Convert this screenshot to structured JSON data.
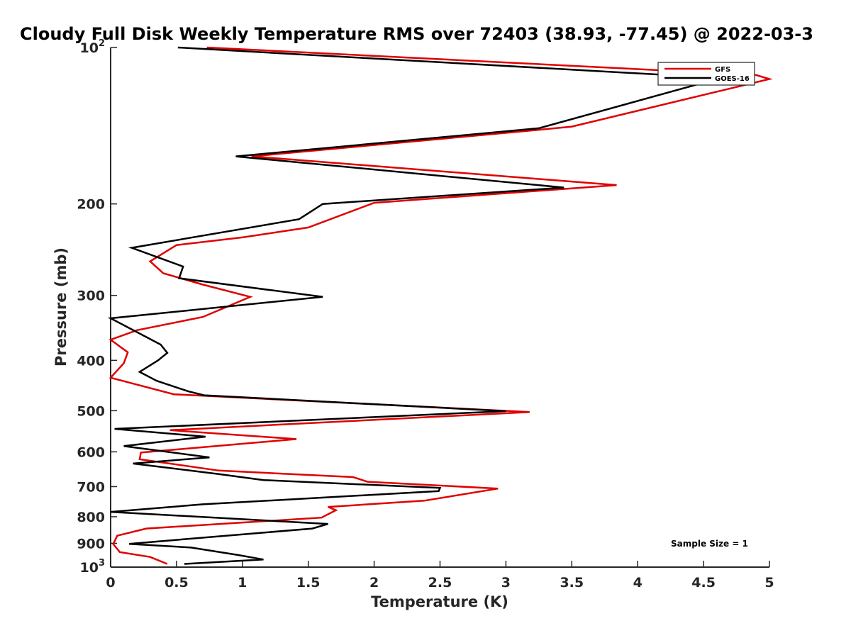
{
  "chart_data": {
    "type": "line",
    "title": "Cloudy Full Disk Weekly Temperature RMS over 72403 (38.93, -77.45) @ 2022-03-3",
    "xlabel": "Temperature (K)",
    "ylabel": "Pressure (mb)",
    "xlim": [
      0,
      5
    ],
    "ylim": [
      100,
      1000
    ],
    "y_scale": "log",
    "y_reversed": true,
    "x_ticks": [
      "0",
      "0.5",
      "1",
      "1.5",
      "2",
      "2.5",
      "3",
      "3.5",
      "4",
      "4.5",
      "5"
    ],
    "y_ticks": [
      {
        "value": 100,
        "base": "10",
        "exp": "2"
      },
      {
        "value": 200,
        "label": "200"
      },
      {
        "value": 300,
        "label": "300"
      },
      {
        "value": 400,
        "label": "400"
      },
      {
        "value": 500,
        "label": "500"
      },
      {
        "value": 600,
        "label": "600"
      },
      {
        "value": 700,
        "label": "700"
      },
      {
        "value": 800,
        "label": "800"
      },
      {
        "value": 900,
        "label": "900"
      },
      {
        "value": 1000,
        "base": "10",
        "exp": "3"
      }
    ],
    "grid": false,
    "legend_position": "top-right",
    "annotation": "Sample Size = 1",
    "series": [
      {
        "name": "GFS",
        "color": "#e00000",
        "x": [
          0.73,
          4.9,
          5.0,
          3.5,
          3.25,
          1.07,
          3.84,
          2.0,
          1.5,
          1.0,
          0.5,
          0.3,
          0.4,
          0.7,
          1.06,
          0.7,
          0.2,
          0.0,
          0.13,
          0.1,
          0.0,
          0.48,
          3.18,
          0.45,
          1.41,
          0.23,
          0.22,
          0.82,
          1.84,
          1.95,
          2.94,
          2.38,
          1.65,
          1.71,
          1.6,
          0.27,
          0.05,
          0.02,
          0.07,
          0.3,
          0.43
        ],
        "y": [
          100,
          113,
          115,
          142,
          144,
          162,
          184,
          199,
          222,
          232,
          240,
          258,
          272,
          286,
          302,
          330,
          350,
          365,
          386,
          405,
          432,
          465,
          503,
          545,
          567,
          602,
          620,
          652,
          671,
          685,
          706,
          745,
          766,
          777,
          803,
          843,
          870,
          903,
          936,
          956,
          986
        ]
      },
      {
        "name": "GOES-16",
        "color": "#000000",
        "x": [
          0.51,
          4.5,
          4.6,
          3.25,
          0.95,
          3.44,
          1.61,
          1.43,
          0.16,
          0.55,
          0.52,
          1.61,
          0.0,
          0.38,
          0.43,
          0.36,
          0.22,
          0.35,
          0.59,
          0.71,
          3.0,
          0.03,
          0.72,
          0.1,
          0.75,
          0.17,
          0.82,
          1.16,
          2.5,
          2.49,
          0.7,
          0.0,
          1.65,
          1.53,
          0.14,
          0.61,
          0.97,
          1.16,
          0.56
        ],
        "y": [
          100,
          114,
          115,
          143,
          162,
          186,
          200,
          214,
          243,
          264,
          278,
          302,
          332,
          373,
          387,
          400,
          421,
          438,
          459,
          467,
          501,
          542,
          561,
          585,
          615,
          632,
          662,
          680,
          704,
          714,
          757,
          783,
          826,
          843,
          902,
          917,
          948,
          967,
          986
        ]
      }
    ]
  }
}
